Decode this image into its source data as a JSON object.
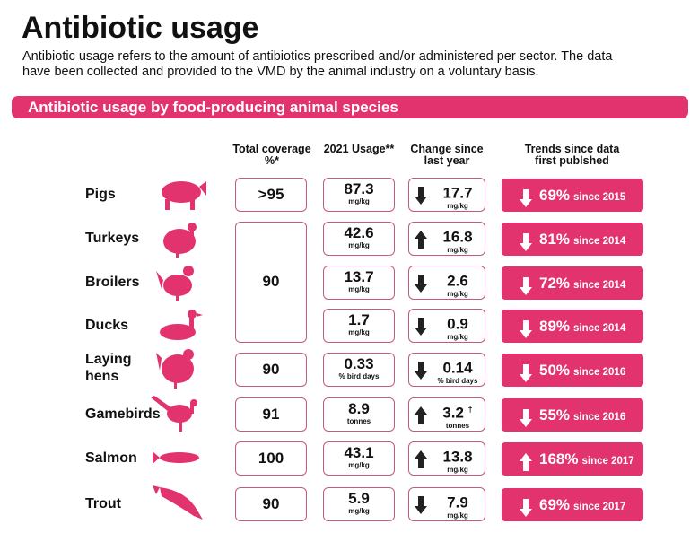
{
  "title": "Antibiotic usage",
  "intro": "Antibiotic usage refers to the amount of antibiotics prescribed and/or administered per sector. The data have been collected and provided to the VMD by the animal industry on a voluntary basis.",
  "banner": "Antibiotic usage by food-producing animal species",
  "headers": {
    "coverage": "Total coverage %*",
    "usage": "2021 Usage**",
    "change": "Change since last year",
    "trends": "Trends since data first publshed"
  },
  "colors": {
    "accent": "#e2336f",
    "border": "#c25a80",
    "arrow": "#222222"
  },
  "merged_coverage": "90",
  "rows": [
    {
      "label": "Pigs",
      "coverage": ">95",
      "usage": "87.3",
      "usage_unit": "mg/kg",
      "change_dir": "down",
      "change": "17.7",
      "change_unit": "mg/kg",
      "change_mark": "",
      "trend_dir": "down",
      "trend_pct": "69%",
      "trend_since": "since 2015"
    },
    {
      "label": "Turkeys",
      "coverage": null,
      "usage": "42.6",
      "usage_unit": "mg/kg",
      "change_dir": "up",
      "change": "16.8",
      "change_unit": "mg/kg",
      "change_mark": "",
      "trend_dir": "down",
      "trend_pct": "81%",
      "trend_since": "since 2014"
    },
    {
      "label": "Broilers",
      "coverage": null,
      "usage": "13.7",
      "usage_unit": "mg/kg",
      "change_dir": "down",
      "change": "2.6",
      "change_unit": "mg/kg",
      "change_mark": "",
      "trend_dir": "down",
      "trend_pct": "72%",
      "trend_since": "since 2014"
    },
    {
      "label": "Ducks",
      "coverage": null,
      "usage": "1.7",
      "usage_unit": "mg/kg",
      "change_dir": "down",
      "change": "0.9",
      "change_unit": "mg/kg",
      "change_mark": "",
      "trend_dir": "down",
      "trend_pct": "89%",
      "trend_since": "since 2014"
    },
    {
      "label": "Laying hens",
      "coverage": "90",
      "usage": "0.33",
      "usage_unit": "% bird days",
      "change_dir": "down",
      "change": "0.14",
      "change_unit": "% bird days",
      "change_mark": "",
      "trend_dir": "down",
      "trend_pct": "50%",
      "trend_since": "since 2016"
    },
    {
      "label": "Gamebirds",
      "coverage": "91",
      "usage": "8.9",
      "usage_unit": "tonnes",
      "change_dir": "up",
      "change": "3.2",
      "change_unit": "tonnes",
      "change_mark": "†",
      "trend_dir": "down",
      "trend_pct": "55%",
      "trend_since": "since 2016"
    },
    {
      "label": "Salmon",
      "coverage": "100",
      "usage": "43.1",
      "usage_unit": "mg/kg",
      "change_dir": "up",
      "change": "13.8",
      "change_unit": "mg/kg",
      "change_mark": "",
      "trend_dir": "up",
      "trend_pct": "168%",
      "trend_since": "since 2017"
    },
    {
      "label": "Trout",
      "coverage": "90",
      "usage": "5.9",
      "usage_unit": "mg/kg",
      "change_dir": "down",
      "change": "7.9",
      "change_unit": "mg/kg",
      "change_mark": "",
      "trend_dir": "down",
      "trend_pct": "69%",
      "trend_since": "since 2017"
    }
  ]
}
